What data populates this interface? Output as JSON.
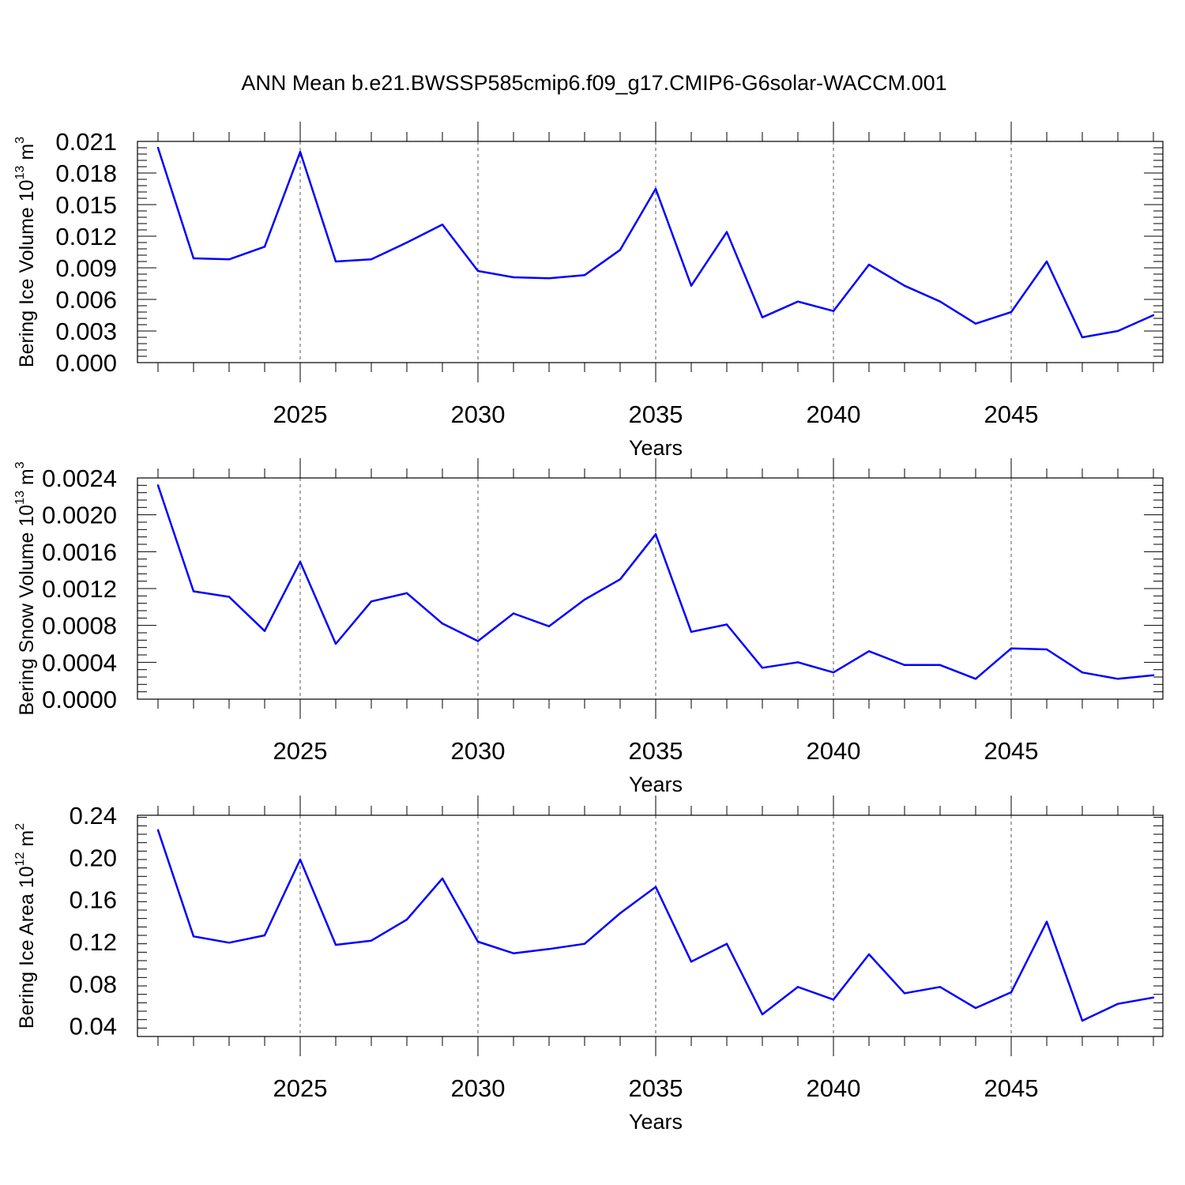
{
  "title": "ANN Mean b.e21.BWSSP585cmip6.f09_g17.CMIP6-G6solar-WACCM.001",
  "colors": {
    "line": "#0000ff",
    "axes": "#000000",
    "grid": "#555555"
  },
  "chart_data": [
    {
      "type": "line",
      "ylabel": {
        "main": "Bering Ice Volume 10",
        "exp": "13",
        "unit": " m",
        "unit_exp": "3"
      },
      "xlabel": "Years",
      "x": [
        2021,
        2022,
        2023,
        2024,
        2025,
        2026,
        2027,
        2028,
        2029,
        2030,
        2031,
        2032,
        2033,
        2034,
        2035,
        2036,
        2037,
        2038,
        2039,
        2040,
        2041,
        2042,
        2043,
        2044,
        2045,
        2046,
        2047,
        2048,
        2049
      ],
      "values": [
        0.0204,
        0.0099,
        0.0098,
        0.011,
        0.02,
        0.0096,
        0.0098,
        0.0114,
        0.0131,
        0.0087,
        0.0081,
        0.008,
        0.0083,
        0.0107,
        0.0165,
        0.0073,
        0.0124,
        0.0043,
        0.0058,
        0.0049,
        0.0093,
        0.0073,
        0.0058,
        0.0037,
        0.0048,
        0.0096,
        0.0024,
        0.003,
        0.0045
      ],
      "xlim": [
        2021,
        2049
      ],
      "ylim": [
        0,
        0.021
      ],
      "yticks": [
        "0.000",
        "0.003",
        "0.006",
        "0.009",
        "0.012",
        "0.015",
        "0.018",
        "0.021"
      ],
      "xticks": [
        "2025",
        "2030",
        "2035",
        "2040",
        "2045"
      ],
      "grid": "dashed vertical at labeled years"
    },
    {
      "type": "line",
      "ylabel": {
        "main": "Bering Snow Volume 10",
        "exp": "13",
        "unit": " m",
        "unit_exp": "3"
      },
      "xlabel": "Years",
      "x": [
        2021,
        2022,
        2023,
        2024,
        2025,
        2026,
        2027,
        2028,
        2029,
        2030,
        2031,
        2032,
        2033,
        2034,
        2035,
        2036,
        2037,
        2038,
        2039,
        2040,
        2041,
        2042,
        2043,
        2044,
        2045,
        2046,
        2047,
        2048,
        2049
      ],
      "values": [
        0.00232,
        0.00117,
        0.00111,
        0.00074,
        0.00149,
        0.0006,
        0.00106,
        0.00115,
        0.00082,
        0.00063,
        0.00093,
        0.00079,
        0.00108,
        0.0013,
        0.00179,
        0.00073,
        0.00081,
        0.00034,
        0.0004,
        0.00029,
        0.00052,
        0.00037,
        0.00037,
        0.00022,
        0.00055,
        0.00054,
        0.00029,
        0.00022,
        0.00026
      ],
      "xlim": [
        2021,
        2049
      ],
      "ylim": [
        0,
        0.0024
      ],
      "yticks": [
        "0.0000",
        "0.0004",
        "0.0008",
        "0.0012",
        "0.0016",
        "0.0020",
        "0.0024"
      ],
      "xticks": [
        "2025",
        "2030",
        "2035",
        "2040",
        "2045"
      ],
      "grid": "dashed vertical at labeled years"
    },
    {
      "type": "line",
      "ylabel": {
        "main": "Bering Ice Area 10",
        "exp": "12",
        "unit": " m",
        "unit_exp": "2"
      },
      "xlabel": "Years",
      "x": [
        2021,
        2022,
        2023,
        2024,
        2025,
        2026,
        2027,
        2028,
        2029,
        2030,
        2031,
        2032,
        2033,
        2034,
        2035,
        2036,
        2037,
        2038,
        2039,
        2040,
        2041,
        2042,
        2043,
        2044,
        2045,
        2046,
        2047,
        2048,
        2049
      ],
      "values": [
        0.226,
        0.125,
        0.119,
        0.126,
        0.198,
        0.117,
        0.121,
        0.141,
        0.18,
        0.12,
        0.109,
        0.113,
        0.118,
        0.147,
        0.172,
        0.101,
        0.118,
        0.051,
        0.077,
        0.065,
        0.108,
        0.071,
        0.077,
        0.057,
        0.072,
        0.139,
        0.045,
        0.061,
        0.067
      ],
      "xlim": [
        2021,
        2049
      ],
      "ylim": [
        0.03,
        0.24
      ],
      "yticks": [
        "0.04",
        "0.08",
        "0.12",
        "0.16",
        "0.20",
        "0.24"
      ],
      "xticks": [
        "2025",
        "2030",
        "2035",
        "2040",
        "2045"
      ],
      "grid": "dashed vertical at labeled years"
    }
  ]
}
